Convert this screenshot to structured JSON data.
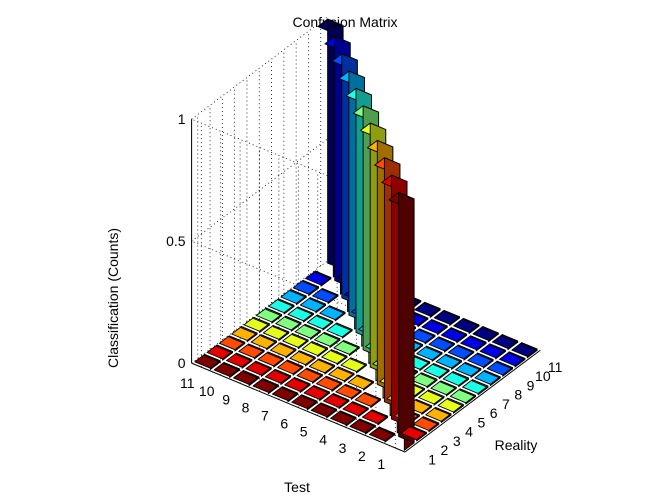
{
  "chart_data": {
    "type": "bar3",
    "title": "Confusion Matrix",
    "xlabel": "Test",
    "ylabel": "Reality",
    "zlabel": "Classification (Counts)",
    "x_ticks": [
      "1",
      "2",
      "3",
      "4",
      "5",
      "6",
      "7",
      "8",
      "9",
      "10",
      "11"
    ],
    "y_ticks": [
      "1",
      "2",
      "3",
      "4",
      "5",
      "6",
      "7",
      "8",
      "9",
      "10",
      "11"
    ],
    "z_ticks": [
      "0",
      "0.5",
      "1"
    ],
    "zlim": [
      0,
      1
    ],
    "grid": true,
    "colormap": "jet",
    "matrix_rows_are": "Test",
    "matrix_cols_are": "Reality",
    "values": [
      [
        1,
        0,
        0,
        0,
        0,
        0,
        0,
        0,
        0,
        0,
        0
      ],
      [
        0,
        1,
        0,
        0,
        0,
        0,
        0,
        0,
        0,
        0,
        0
      ],
      [
        0,
        0,
        1,
        0,
        0,
        0,
        0,
        0,
        0,
        0,
        0
      ],
      [
        0,
        0,
        0,
        1,
        0,
        0,
        0,
        0,
        0,
        0,
        0
      ],
      [
        0,
        0,
        0,
        0,
        1,
        0,
        0,
        0,
        0,
        0,
        0
      ],
      [
        0,
        0,
        0,
        0,
        0,
        1,
        0,
        0,
        0,
        0,
        0
      ],
      [
        0,
        0,
        0,
        0,
        0,
        0,
        1,
        0,
        0,
        0,
        0
      ],
      [
        0,
        0,
        0,
        0,
        0,
        0,
        0,
        1,
        0,
        0,
        0
      ],
      [
        0,
        0,
        0,
        0,
        0,
        0,
        0,
        0,
        1,
        0,
        0
      ],
      [
        0,
        0,
        0,
        0,
        0,
        0,
        0,
        0,
        0,
        1,
        0
      ],
      [
        0,
        0,
        0,
        0,
        0,
        0,
        0,
        0,
        0,
        0,
        1
      ]
    ]
  }
}
